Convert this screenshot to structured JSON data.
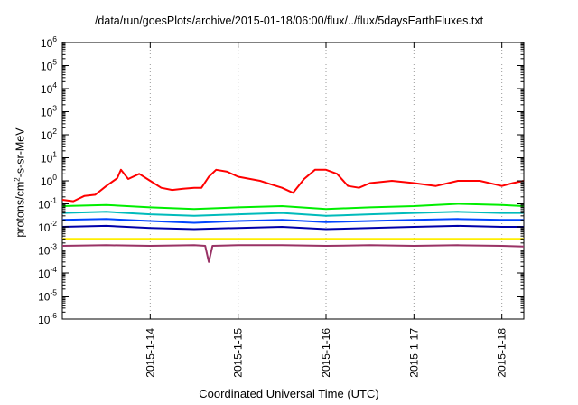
{
  "chart_data": {
    "type": "line",
    "title": "/data/run/goesPlots/archive/2015-01-18/06:00/flux/../flux/5daysEarthFluxes.txt",
    "xlabel": "Coordinated Universal Time (UTC)",
    "ylabel": {
      "prefix": "protons/cm",
      "sup": "2",
      "suffix": "-s-sr-MeV"
    },
    "y_scale": "log",
    "ylim": [
      1e-06,
      1000000.0
    ],
    "y_ticks": [
      {
        "value": -6,
        "base": "10",
        "exp": "-6"
      },
      {
        "value": -5,
        "base": "10",
        "exp": "-5"
      },
      {
        "value": -4,
        "base": "10",
        "exp": "-4"
      },
      {
        "value": -3,
        "base": "10",
        "exp": "-3"
      },
      {
        "value": -2,
        "base": "10",
        "exp": "-2"
      },
      {
        "value": -1,
        "base": "10",
        "exp": "-1"
      },
      {
        "value": 0,
        "base": "10",
        "exp": "0"
      },
      {
        "value": 1,
        "base": "10",
        "exp": "1"
      },
      {
        "value": 2,
        "base": "10",
        "exp": "2"
      },
      {
        "value": 3,
        "base": "10",
        "exp": "3"
      },
      {
        "value": 4,
        "base": "10",
        "exp": "4"
      },
      {
        "value": 5,
        "base": "10",
        "exp": "5"
      },
      {
        "value": 6,
        "base": "10",
        "exp": "6"
      }
    ],
    "xlim": [
      "2015-01-13T00:00",
      "2015-01-18T06:00"
    ],
    "x_ticks": [
      {
        "value": "2015-01-14T00:00",
        "label": "2015-1-14"
      },
      {
        "value": "2015-01-15T00:00",
        "label": "2015-1-15"
      },
      {
        "value": "2015-01-16T00:00",
        "label": "2015-1-16"
      },
      {
        "value": "2015-01-17T00:00",
        "label": "2015-1-17"
      },
      {
        "value": "2015-01-18T00:00",
        "label": "2015-1-18"
      }
    ],
    "grid": "vertical dotted at x ticks",
    "legend": "none",
    "series": [
      {
        "color": "#ff0000",
        "points": [
          [
            "2015-01-13T00:00",
            0.15
          ],
          [
            "2015-01-13T03:00",
            0.13
          ],
          [
            "2015-01-13T06:00",
            0.22
          ],
          [
            "2015-01-13T09:00",
            0.25
          ],
          [
            "2015-01-13T12:00",
            0.6
          ],
          [
            "2015-01-13T15:00",
            1.3
          ],
          [
            "2015-01-13T16:00",
            3.0
          ],
          [
            "2015-01-13T18:00",
            1.2
          ],
          [
            "2015-01-13T21:00",
            2.0
          ],
          [
            "2015-01-14T00:00",
            1.0
          ],
          [
            "2015-01-14T03:00",
            0.5
          ],
          [
            "2015-01-14T06:00",
            0.4
          ],
          [
            "2015-01-14T09:00",
            0.45
          ],
          [
            "2015-01-14T12:00",
            0.5
          ],
          [
            "2015-01-14T14:00",
            0.5
          ],
          [
            "2015-01-14T16:00",
            1.5
          ],
          [
            "2015-01-14T18:00",
            3.0
          ],
          [
            "2015-01-14T21:00",
            2.5
          ],
          [
            "2015-01-15T00:00",
            1.5
          ],
          [
            "2015-01-15T06:00",
            1.0
          ],
          [
            "2015-01-15T09:00",
            0.7
          ],
          [
            "2015-01-15T12:00",
            0.5
          ],
          [
            "2015-01-15T15:00",
            0.3
          ],
          [
            "2015-01-15T18:00",
            1.2
          ],
          [
            "2015-01-15T21:00",
            3.0
          ],
          [
            "2015-01-16T00:00",
            3.0
          ],
          [
            "2015-01-16T03:00",
            2.0
          ],
          [
            "2015-01-16T06:00",
            0.6
          ],
          [
            "2015-01-16T09:00",
            0.5
          ],
          [
            "2015-01-16T12:00",
            0.8
          ],
          [
            "2015-01-16T18:00",
            1.0
          ],
          [
            "2015-01-17T00:00",
            0.8
          ],
          [
            "2015-01-17T06:00",
            0.6
          ],
          [
            "2015-01-17T12:00",
            1.0
          ],
          [
            "2015-01-17T18:00",
            1.0
          ],
          [
            "2015-01-18T00:00",
            0.6
          ],
          [
            "2015-01-18T03:00",
            0.8
          ],
          [
            "2015-01-18T06:00",
            1.0
          ]
        ]
      },
      {
        "color": "#00ee00",
        "points": [
          [
            "2015-01-13T00:00",
            0.08
          ],
          [
            "2015-01-13T12:00",
            0.09
          ],
          [
            "2015-01-14T00:00",
            0.07
          ],
          [
            "2015-01-14T12:00",
            0.06
          ],
          [
            "2015-01-15T00:00",
            0.07
          ],
          [
            "2015-01-15T12:00",
            0.08
          ],
          [
            "2015-01-16T00:00",
            0.06
          ],
          [
            "2015-01-16T12:00",
            0.07
          ],
          [
            "2015-01-17T00:00",
            0.08
          ],
          [
            "2015-01-17T12:00",
            0.1
          ],
          [
            "2015-01-18T00:00",
            0.09
          ],
          [
            "2015-01-18T06:00",
            0.08
          ]
        ]
      },
      {
        "color": "#00bbbb",
        "points": [
          [
            "2015-01-13T00:00",
            0.04
          ],
          [
            "2015-01-13T12:00",
            0.045
          ],
          [
            "2015-01-14T00:00",
            0.035
          ],
          [
            "2015-01-14T12:00",
            0.03
          ],
          [
            "2015-01-15T00:00",
            0.035
          ],
          [
            "2015-01-15T12:00",
            0.04
          ],
          [
            "2015-01-16T00:00",
            0.03
          ],
          [
            "2015-01-16T12:00",
            0.035
          ],
          [
            "2015-01-17T00:00",
            0.04
          ],
          [
            "2015-01-17T12:00",
            0.045
          ],
          [
            "2015-01-18T00:00",
            0.04
          ],
          [
            "2015-01-18T06:00",
            0.04
          ]
        ]
      },
      {
        "color": "#0044ff",
        "points": [
          [
            "2015-01-13T00:00",
            0.02
          ],
          [
            "2015-01-13T12:00",
            0.022
          ],
          [
            "2015-01-14T00:00",
            0.018
          ],
          [
            "2015-01-14T12:00",
            0.015
          ],
          [
            "2015-01-15T00:00",
            0.018
          ],
          [
            "2015-01-15T12:00",
            0.02
          ],
          [
            "2015-01-16T00:00",
            0.016
          ],
          [
            "2015-01-16T12:00",
            0.018
          ],
          [
            "2015-01-17T00:00",
            0.02
          ],
          [
            "2015-01-17T12:00",
            0.022
          ],
          [
            "2015-01-18T00:00",
            0.02
          ],
          [
            "2015-01-18T06:00",
            0.02
          ]
        ]
      },
      {
        "color": "#0000aa",
        "points": [
          [
            "2015-01-13T00:00",
            0.01
          ],
          [
            "2015-01-13T12:00",
            0.011
          ],
          [
            "2015-01-14T00:00",
            0.009
          ],
          [
            "2015-01-14T12:00",
            0.008
          ],
          [
            "2015-01-15T00:00",
            0.009
          ],
          [
            "2015-01-15T12:00",
            0.01
          ],
          [
            "2015-01-16T00:00",
            0.008
          ],
          [
            "2015-01-16T12:00",
            0.009
          ],
          [
            "2015-01-17T00:00",
            0.01
          ],
          [
            "2015-01-17T12:00",
            0.011
          ],
          [
            "2015-01-18T00:00",
            0.01
          ],
          [
            "2015-01-18T06:00",
            0.01
          ]
        ]
      },
      {
        "color": "#ffee00",
        "points": [
          [
            "2015-01-13T00:00",
            0.003
          ],
          [
            "2015-01-14T00:00",
            0.003
          ],
          [
            "2015-01-15T00:00",
            0.003
          ],
          [
            "2015-01-16T00:00",
            0.003
          ],
          [
            "2015-01-17T00:00",
            0.003
          ],
          [
            "2015-01-18T00:00",
            0.003
          ],
          [
            "2015-01-18T06:00",
            0.003
          ]
        ]
      },
      {
        "color": "#993366",
        "points": [
          [
            "2015-01-13T00:00",
            0.0015
          ],
          [
            "2015-01-13T12:00",
            0.0016
          ],
          [
            "2015-01-14T00:00",
            0.0015
          ],
          [
            "2015-01-14T12:00",
            0.0016
          ],
          [
            "2015-01-14T15:00",
            0.0015
          ],
          [
            "2015-01-14T16:00",
            0.0003
          ],
          [
            "2015-01-14T17:00",
            0.0015
          ],
          [
            "2015-01-15T00:00",
            0.0016
          ],
          [
            "2015-01-15T12:00",
            0.0016
          ],
          [
            "2015-01-16T00:00",
            0.0015
          ],
          [
            "2015-01-16T12:00",
            0.0016
          ],
          [
            "2015-01-17T00:00",
            0.0015
          ],
          [
            "2015-01-17T12:00",
            0.0016
          ],
          [
            "2015-01-18T00:00",
            0.0015
          ],
          [
            "2015-01-18T06:00",
            0.0014
          ]
        ]
      }
    ]
  }
}
